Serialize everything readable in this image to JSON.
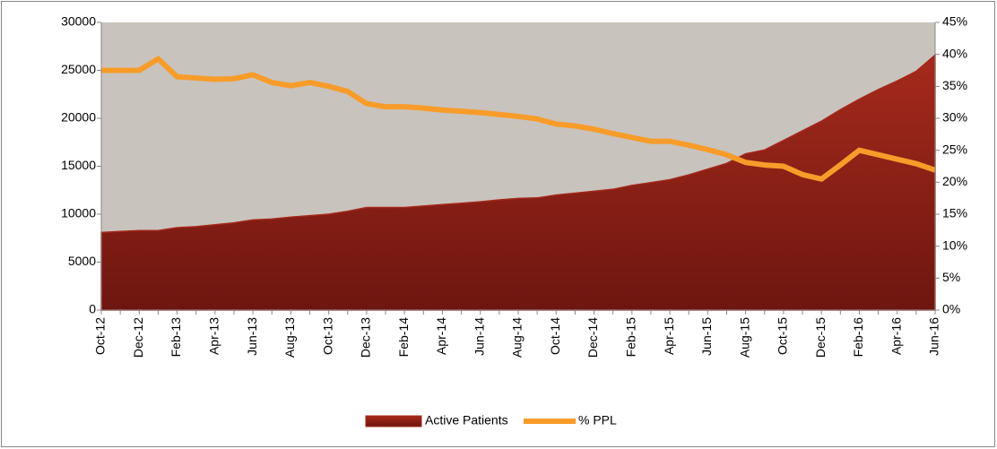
{
  "chart_data": {
    "type": "area-line",
    "categories": [
      "Oct-12",
      null,
      "Dec-12",
      null,
      "Feb-13",
      null,
      "Apr-13",
      null,
      "Jun-13",
      null,
      "Aug-13",
      null,
      "Oct-13",
      null,
      "Dec-13",
      null,
      "Feb-14",
      null,
      "Apr-14",
      null,
      "Jun-14",
      null,
      "Aug-14",
      null,
      "Oct-14",
      null,
      "Dec-14",
      null,
      "Feb-15",
      null,
      "Apr-15",
      null,
      "Jun-15",
      null,
      "Aug-15",
      null,
      "Oct-15",
      null,
      "Dec-15",
      null,
      "Feb-16",
      null,
      "Apr-16",
      null,
      "Jun-16"
    ],
    "series": [
      {
        "name": "Active Patients",
        "color": "#8b1a12",
        "kind": "area",
        "values": [
          8100,
          8200,
          8300,
          8300,
          8600,
          8700,
          8900,
          9100,
          9400,
          9500,
          9700,
          9850,
          10000,
          10300,
          10700,
          10700,
          10700,
          10850,
          11000,
          11150,
          11300,
          11500,
          11650,
          11700,
          12000,
          12200,
          12400,
          12600,
          13000,
          13300,
          13600,
          14100,
          14700,
          15300,
          16300,
          16700,
          17700,
          18700,
          19700,
          20900,
          22000,
          23000,
          23900,
          24900,
          26600
        ]
      },
      {
        "name": "% PPL",
        "color": "#f79c2a",
        "kind": "line",
        "axis": "y2",
        "values": [
          37.5,
          37.5,
          37.5,
          39.3,
          36.5,
          36.3,
          36.1,
          36.2,
          36.8,
          35.6,
          35.1,
          35.6,
          35.0,
          34.2,
          32.3,
          31.8,
          31.8,
          31.6,
          31.3,
          31.1,
          30.9,
          30.6,
          30.3,
          29.9,
          29.1,
          28.8,
          28.3,
          27.6,
          27.0,
          26.4,
          26.4,
          25.8,
          25.1,
          24.3,
          23.1,
          22.7,
          22.5,
          21.2,
          20.5,
          22.7,
          25.0,
          24.3,
          23.6,
          22.9,
          21.9
        ]
      }
    ],
    "ylim": [
      0,
      30000
    ],
    "yticks": [
      0,
      5000,
      10000,
      15000,
      20000,
      25000,
      30000
    ],
    "y2lim": [
      0,
      45
    ],
    "y2ticks": [
      {
        "value": 0,
        "label": "0%"
      },
      {
        "value": 5,
        "label": "5%"
      },
      {
        "value": 10,
        "label": "10%"
      },
      {
        "value": 15,
        "label": "15%"
      },
      {
        "value": 20,
        "label": "20%"
      },
      {
        "value": 25,
        "label": "25%"
      },
      {
        "value": 30,
        "label": "30%"
      },
      {
        "value": 35,
        "label": "35%"
      },
      {
        "value": 40,
        "label": "40%"
      },
      {
        "value": 45,
        "label": "45%"
      }
    ],
    "legend": "bottom",
    "plot_background": "#c9c3bd"
  }
}
